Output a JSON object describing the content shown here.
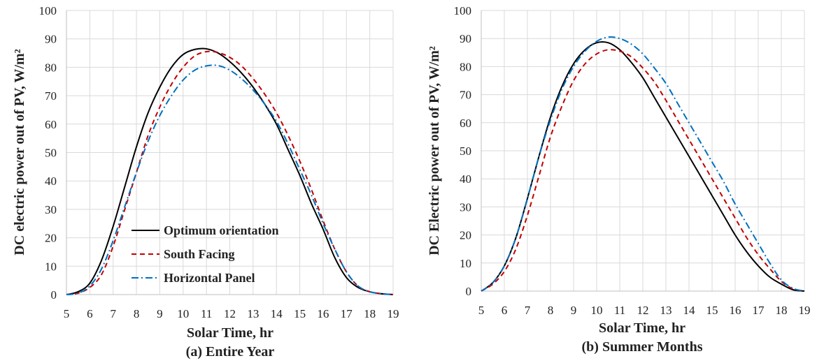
{
  "chart_data": [
    {
      "type": "line",
      "caption": "(a) Entire Year",
      "xlabel": "Solar Time, hr",
      "ylabel": "DC electric power out of PV, W/m²",
      "xlim": [
        5,
        19
      ],
      "ylim": [
        0,
        100
      ],
      "x_ticks": [
        5,
        6,
        7,
        8,
        9,
        10,
        11,
        12,
        13,
        14,
        15,
        16,
        17,
        18,
        19
      ],
      "y_ticks": [
        0,
        10,
        20,
        30,
        40,
        50,
        60,
        70,
        80,
        90,
        100
      ],
      "grid": true,
      "legend": "bottom-left",
      "x": [
        5,
        5.5,
        6,
        6.5,
        7,
        7.5,
        8,
        8.5,
        9,
        9.5,
        10,
        10.5,
        11,
        11.5,
        12,
        12.5,
        13,
        13.5,
        14,
        14.5,
        15,
        15.5,
        16,
        16.5,
        17,
        17.5,
        18,
        18.5,
        19
      ],
      "series": [
        {
          "name": "Optimum orientation",
          "color": "#000000",
          "dash": "solid",
          "values": [
            0,
            1,
            4,
            12,
            24,
            38,
            52,
            64,
            73,
            80,
            84.5,
            86.3,
            86.5,
            85,
            82,
            78,
            73,
            67,
            60,
            51,
            42,
            32,
            23,
            13,
            6,
            2.5,
            1,
            0.3,
            0
          ]
        },
        {
          "name": "South Facing",
          "color": "#c00000",
          "dash": "dashed",
          "values": [
            0,
            0.5,
            2.5,
            7,
            17,
            30,
            43,
            56,
            66,
            74,
            80,
            84,
            85.5,
            85.2,
            83.5,
            80.5,
            76,
            70.5,
            64,
            56,
            47,
            37,
            26,
            16,
            8,
            3,
            1,
            0.3,
            0
          ]
        },
        {
          "name": "Horizontal Panel",
          "color": "#0070c0",
          "dash": "dashdot",
          "values": [
            0,
            0.5,
            3,
            9,
            19,
            31,
            43,
            54,
            63,
            70,
            75.5,
            79,
            80.5,
            80.6,
            79,
            76,
            72,
            67,
            61,
            53,
            44,
            35,
            25,
            16,
            8,
            3,
            1,
            0.3,
            0
          ]
        }
      ]
    },
    {
      "type": "line",
      "caption": "(b) Summer Months",
      "xlabel": "Solar Time, hr",
      "ylabel": "DC Electric power out of PV, W/m²",
      "xlim": [
        5,
        19
      ],
      "ylim": [
        0,
        100
      ],
      "x_ticks": [
        5,
        6,
        7,
        8,
        9,
        10,
        11,
        12,
        13,
        14,
        15,
        16,
        17,
        18,
        19
      ],
      "y_ticks": [
        0,
        10,
        20,
        30,
        40,
        50,
        60,
        70,
        80,
        90,
        100
      ],
      "grid": true,
      "x": [
        5,
        5.5,
        6,
        6.5,
        7,
        7.5,
        8,
        8.5,
        9,
        9.5,
        10,
        10.5,
        11,
        11.5,
        12,
        12.5,
        13,
        13.5,
        14,
        14.5,
        15,
        15.5,
        16,
        16.5,
        17,
        17.5,
        18,
        18.5,
        19
      ],
      "series": [
        {
          "name": "Optimum orientation",
          "color": "#000000",
          "dash": "solid",
          "values": [
            0,
            3,
            9,
            19,
            33,
            48,
            62,
            73,
            81,
            86,
            88.5,
            88.5,
            86,
            81.5,
            76,
            69,
            62,
            55,
            48,
            41,
            34,
            27,
            20,
            14,
            9,
            5,
            2.5,
            0.5,
            0
          ]
        },
        {
          "name": "South Facing",
          "color": "#c00000",
          "dash": "dashed",
          "values": [
            0,
            2.5,
            7,
            15,
            27,
            41,
            55,
            66,
            75,
            81,
            84.5,
            86,
            85.5,
            83.5,
            79.5,
            74.5,
            68,
            61,
            54,
            47,
            40,
            33,
            26,
            19,
            13,
            8,
            3.5,
            0.8,
            0
          ]
        },
        {
          "name": "Horizontal Panel",
          "color": "#0070c0",
          "dash": "dashdot",
          "values": [
            0,
            3,
            9,
            19,
            33,
            48,
            61,
            72,
            80,
            85.5,
            89,
            90.5,
            90,
            88,
            84.5,
            79.5,
            74,
            67,
            60,
            53,
            46,
            39,
            31,
            24,
            17,
            10,
            4,
            1,
            0
          ]
        }
      ]
    }
  ]
}
